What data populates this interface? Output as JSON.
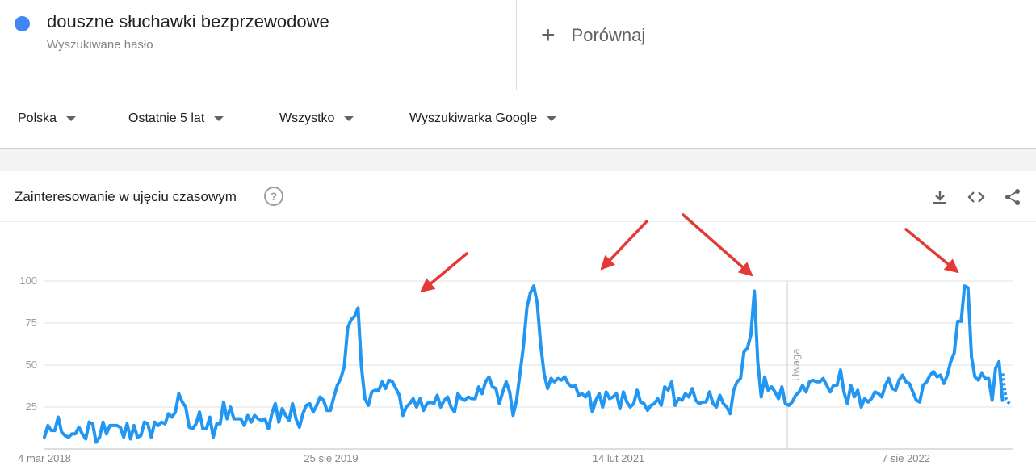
{
  "term": {
    "title": "douszne słuchawki bezprzewodowe",
    "subtitle": "Wyszukiwane hasło",
    "color": "#4285f4"
  },
  "compare": {
    "icon": "plus-icon",
    "label": "Porównaj"
  },
  "filters": [
    {
      "label": "Polska"
    },
    {
      "label": "Ostatnie 5 lat"
    },
    {
      "label": "Wszystko"
    },
    {
      "label": "Wyszukiwarka Google"
    }
  ],
  "card": {
    "title": "Zainteresowanie w ujęciu czasowym",
    "help_icon": "?",
    "tools": [
      "download-icon",
      "embed-icon",
      "share-icon"
    ]
  },
  "chart_data": {
    "type": "line",
    "x_start": "4 mar 2018",
    "x_end_approx": "2023",
    "x_ticks": [
      "4 mar 2018",
      "25 sie 2019",
      "14 lut 2021",
      "7 sie 2022"
    ],
    "y_ticks": [
      25,
      50,
      75,
      100
    ],
    "ylim": [
      0,
      100
    ],
    "grid": true,
    "series": [
      {
        "color": "#2196f3",
        "values": [
          7,
          14,
          11,
          11,
          19,
          10,
          8,
          7,
          9,
          9,
          13,
          9,
          6,
          16,
          15,
          4,
          7,
          16,
          9,
          14,
          14,
          14,
          13,
          7,
          15,
          6,
          14,
          7,
          8,
          16,
          15,
          7,
          16,
          14,
          16,
          15,
          21,
          19,
          22,
          33,
          28,
          25,
          13,
          12,
          15,
          22,
          12,
          12,
          19,
          7,
          15,
          15,
          28,
          18,
          25,
          18,
          18,
          18,
          14,
          20,
          16,
          20,
          18,
          17,
          18,
          12,
          21,
          27,
          16,
          24,
          20,
          17,
          27,
          18,
          13,
          21,
          26,
          27,
          22,
          26,
          31,
          29,
          23,
          23,
          31,
          38,
          42,
          49,
          72,
          77,
          79,
          84,
          49,
          30,
          26,
          34,
          35,
          35,
          40,
          36,
          41,
          40,
          36,
          32,
          20,
          25,
          27,
          30,
          25,
          30,
          23,
          27,
          28,
          27,
          32,
          25,
          29,
          31,
          25,
          22,
          33,
          30,
          29,
          31,
          30,
          30,
          37,
          33,
          40,
          43,
          37,
          36,
          27,
          34,
          40,
          34,
          20,
          29,
          45,
          61,
          84,
          93,
          97,
          87,
          62,
          45,
          36,
          42,
          40,
          42,
          41,
          43,
          39,
          37,
          38,
          32,
          33,
          31,
          34,
          22,
          29,
          33,
          25,
          34,
          30,
          31,
          33,
          24,
          34,
          28,
          25,
          27,
          35,
          28,
          27,
          23,
          26,
          27,
          30,
          26,
          37,
          35,
          40,
          26,
          30,
          29,
          33,
          31,
          36,
          29,
          27,
          28,
          28,
          34,
          27,
          25,
          32,
          27,
          25,
          21,
          35,
          40,
          42,
          58,
          60,
          68,
          94,
          52,
          31,
          43,
          35,
          37,
          34,
          30,
          37,
          27,
          26,
          28,
          32,
          34,
          38,
          34,
          40,
          41,
          40,
          40,
          42,
          38,
          34,
          38,
          38,
          47,
          34,
          27,
          38,
          31,
          35,
          25,
          30,
          28,
          30,
          34,
          33,
          31,
          38,
          42,
          36,
          35,
          41,
          44,
          40,
          39,
          34,
          29,
          28,
          38,
          40,
          44,
          46,
          43,
          44,
          39,
          44,
          52,
          57,
          76,
          76,
          97,
          96,
          55,
          43,
          41,
          45,
          42,
          42,
          29,
          48,
          52,
          29
        ],
        "projected_tail": [
          45,
          30,
          27
        ]
      }
    ]
  },
  "annotations": {
    "arrows": 4,
    "color": "#e53935",
    "marker_label": "Uwaga"
  }
}
